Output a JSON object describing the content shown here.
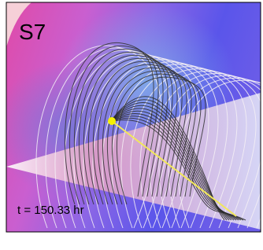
{
  "panel_label": "S7",
  "time_label": "t = 150.33 hr"
}
